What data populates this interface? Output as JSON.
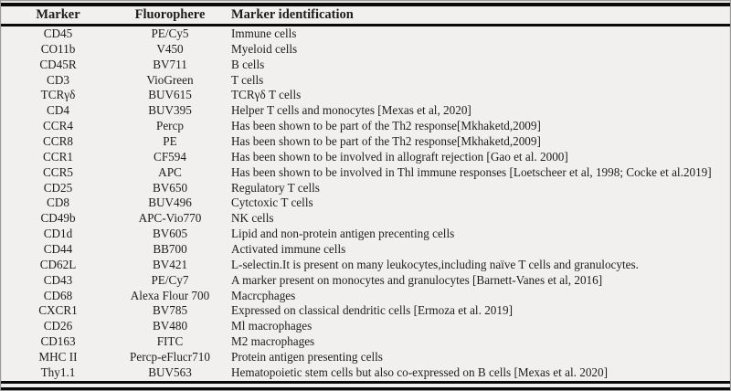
{
  "table": {
    "columns": [
      "Marker",
      "Fluorophere",
      "Marker identification"
    ],
    "rows": [
      {
        "marker": "CD45",
        "fluorophore": "PE/Cy5",
        "identification": "Immune cells"
      },
      {
        "marker": "CO11b",
        "fluorophore": "V450",
        "identification": "Myeloid cells"
      },
      {
        "marker": "CD45R",
        "fluorophore": "BV711",
        "identification": "B cells"
      },
      {
        "marker": "CD3",
        "fluorophore": "VioGreen",
        "identification": "T cells"
      },
      {
        "marker": "TCRγδ",
        "fluorophore": "BUV615",
        "identification": "TCRγδ T cells"
      },
      {
        "marker": "CD4",
        "fluorophore": "BUV395",
        "identification": "Helper T cells and monocytes [Mexas et al, 2020]"
      },
      {
        "marker": "CCR4",
        "fluorophore": "Percp",
        "identification": "Has been shown to be part of the Th2 response[Mkhaketd,2009]"
      },
      {
        "marker": "CCR8",
        "fluorophore": "PE",
        "identification": "Has been shown to be part of the Th2 response[Mkhaketd,2009]"
      },
      {
        "marker": "CCR1",
        "fluorophore": "CF594",
        "identification": "Has been shown to be involved in allograft rejection [Gao et al. 2000]"
      },
      {
        "marker": "CCR5",
        "fluorophore": "APC",
        "identification": "Has been shown to be involved in Thl immune responses [Loetscheer et al, 1998; Cocke et al.2019]"
      },
      {
        "marker": "CD25",
        "fluorophore": "BV650",
        "identification": "Regulatory T cells"
      },
      {
        "marker": "CD8",
        "fluorophore": "BUV496",
        "identification": "Cytctoxic T cells"
      },
      {
        "marker": "CD49b",
        "fluorophore": "APC-Vio770",
        "identification": "NK cells"
      },
      {
        "marker": "CD1d",
        "fluorophore": "BV605",
        "identification": "Lipid and non-protein antigen precenting cells"
      },
      {
        "marker": "CD44",
        "fluorophore": "BB700",
        "identification": "Activated immune cells"
      },
      {
        "marker": "CD62L",
        "fluorophore": "BV421",
        "identification": "L-selectin.It is present on many leukocytes,including naïve T cells and granulocytes."
      },
      {
        "marker": "CD43",
        "fluorophore": "PE/Cy7",
        "identification": "A marker present on monocytes and granulocytes [Barnett-Vanes et al, 2016]"
      },
      {
        "marker": "CD68",
        "fluorophore": "Alexa Flour 700",
        "identification": "Macrcphages"
      },
      {
        "marker": "CXCR1",
        "fluorophore": "BV785",
        "identification": "Expressed on classical dendritic cells [Ermoza et al. 2019]"
      },
      {
        "marker": "CD26",
        "fluorophore": "BV480",
        "identification": "Ml macrophages"
      },
      {
        "marker": "CD163",
        "fluorophore": "FITC",
        "identification": "M2 macrophages"
      },
      {
        "marker": "MHC II",
        "fluorophore": "Percp-eFlucr710",
        "identification": "Protein antigen presenting cells"
      },
      {
        "marker": "Thy1.1",
        "fluorophore": "BUV563",
        "identification": "Hematopoietic stem cells but also co-expressed on B cells [Mexas et al. 2020]"
      }
    ]
  },
  "colors": {
    "background": "#f1f0ef",
    "text": "#1d1d1d",
    "rule": "#0a0a0a",
    "frame": "#9a9a9a"
  }
}
